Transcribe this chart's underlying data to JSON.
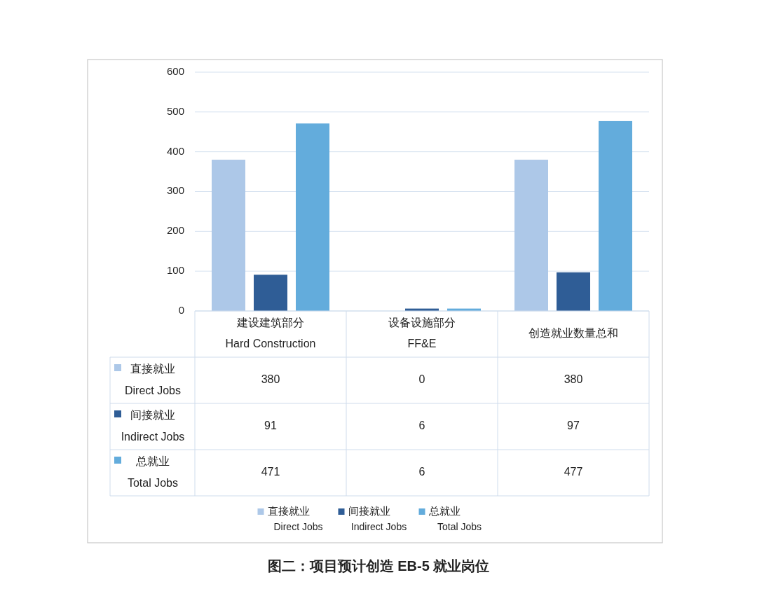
{
  "chart_data": {
    "type": "bar",
    "title": "图二：项目预计创造 EB-5 就业岗位",
    "categories": [
      "建设建筑部分\nHard Construction",
      "设备设施部分\nFF&E",
      "创造就业数量总和"
    ],
    "series": [
      {
        "name": "直接就业\nDirect Jobs",
        "color": "#adc8e8",
        "values": [
          380,
          0,
          380
        ]
      },
      {
        "name": "间接就业\nIndirect Jobs",
        "color": "#2f5d96",
        "values": [
          91,
          6,
          97
        ]
      },
      {
        "name": "总就业\nTotal Jobs",
        "color": "#63acdc",
        "values": [
          471,
          6,
          477
        ]
      }
    ],
    "ylim": [
      0,
      600
    ],
    "yticks": [
      0,
      100,
      200,
      300,
      400,
      500,
      600
    ],
    "grid": "y",
    "data_labels": true,
    "legend": "bottom"
  }
}
